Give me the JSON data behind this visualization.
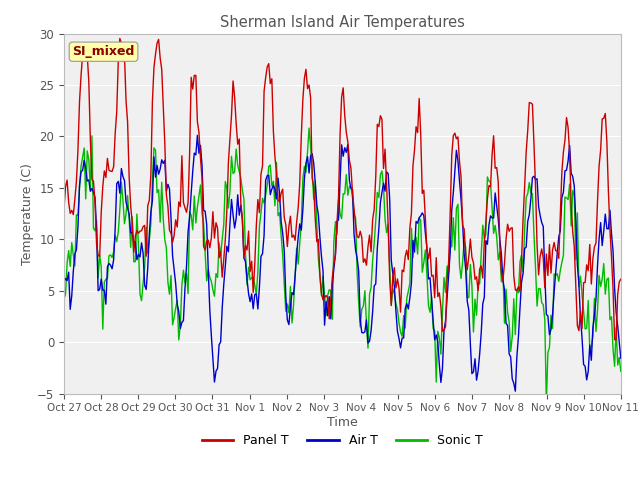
{
  "title": "Sherman Island Air Temperatures",
  "xlabel": "Time",
  "ylabel": "Temperature (C)",
  "ylim": [
    -5,
    30
  ],
  "yticks": [
    -5,
    0,
    5,
    10,
    15,
    20,
    25,
    30
  ],
  "x_tick_labels": [
    "Oct 27",
    "Oct 28",
    "Oct 29",
    "Oct 30",
    "Oct 31",
    "Nov 1",
    "Nov 2",
    "Nov 3",
    "Nov 4",
    "Nov 5",
    "Nov 6",
    "Nov 7",
    "Nov 8",
    "Nov 9",
    "Nov 10",
    "Nov 11"
  ],
  "annotation_text": "SI_mixed",
  "annotation_color": "#8B0000",
  "annotation_bg": "#FFFFAA",
  "line_colors": {
    "panel": "#CC0000",
    "air": "#0000CC",
    "sonic": "#00BB00"
  },
  "line_widths": {
    "panel": 1.0,
    "air": 1.0,
    "sonic": 1.0
  },
  "legend_labels": [
    "Panel T",
    "Air T",
    "Sonic T"
  ],
  "background_color": "#F0F0F0",
  "grid_color": "#FFFFFF",
  "title_color": "#555555",
  "label_color": "#555555",
  "tick_color": "#555555",
  "figsize": [
    6.4,
    4.8
  ],
  "dpi": 100
}
